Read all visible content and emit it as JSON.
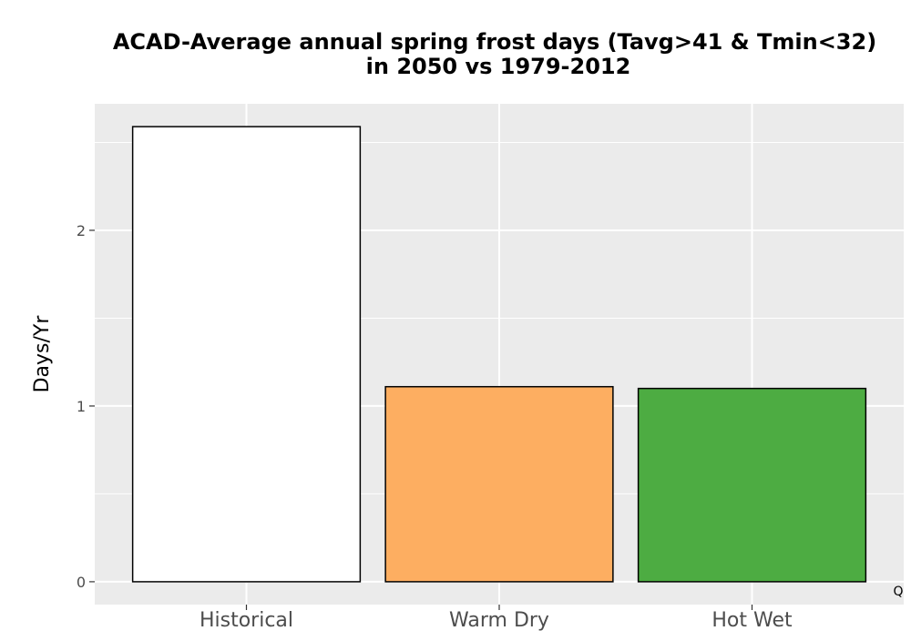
{
  "chart_data": {
    "type": "bar",
    "title": "ACAD-Average annual spring frost days (Tavg>41 & Tmin<32)",
    "subtitle": "in 2050 vs 1979-2012",
    "xlabel": "",
    "ylabel": "Days/Yr",
    "categories": [
      "Historical",
      "Warm Dry",
      "Hot Wet"
    ],
    "values": [
      2.59,
      1.11,
      1.1
    ],
    "bar_colors": [
      "#FFFFFF",
      "#FDAE61",
      "#4DAC42"
    ],
    "bar_edge_color": "#000000",
    "ylim": [
      -0.13,
      2.72
    ],
    "yticks": [
      0,
      1,
      2
    ],
    "ytick_labels": [
      "0",
      "1",
      "2"
    ],
    "grid": true,
    "panel_background": "#EBEBEB",
    "gridline_color": "#FFFFFF",
    "corner_text": "Q"
  }
}
